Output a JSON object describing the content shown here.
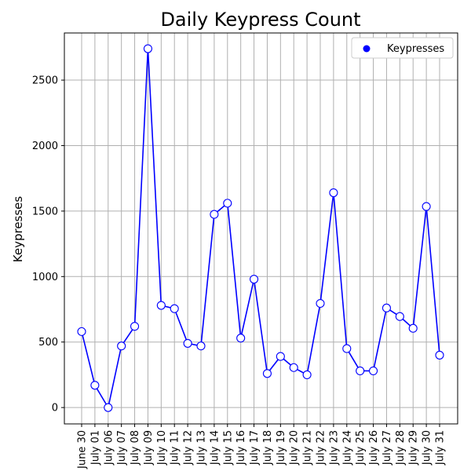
{
  "chart_data": {
    "type": "line",
    "title": "Daily Keypress Count",
    "xlabel": "",
    "ylabel": "Keypresses",
    "categories": [
      "June 30",
      "July 01",
      "July 06",
      "July 07",
      "July 08",
      "July 09",
      "July 10",
      "July 11",
      "July 12",
      "July 13",
      "July 14",
      "July 15",
      "July 16",
      "July 17",
      "July 18",
      "July 19",
      "July 20",
      "July 21",
      "July 22",
      "July 23",
      "July 24",
      "July 25",
      "July 26",
      "July 27",
      "July 28",
      "July 29",
      "July 30",
      "July 31"
    ],
    "series": [
      {
        "name": "Keypresses",
        "color": "#0000ff",
        "marker_fill": "#ffffff",
        "values": [
          580,
          170,
          0,
          470,
          620,
          2740,
          780,
          755,
          490,
          470,
          1475,
          1560,
          530,
          980,
          260,
          390,
          305,
          250,
          795,
          1640,
          450,
          280,
          280,
          760,
          695,
          605,
          1535,
          400
        ]
      }
    ],
    "yticks": [
      0,
      500,
      1000,
      1500,
      2000,
      2500
    ],
    "ylim": [
      -125,
      2860
    ],
    "grid": true,
    "legend_position": "top-right"
  }
}
